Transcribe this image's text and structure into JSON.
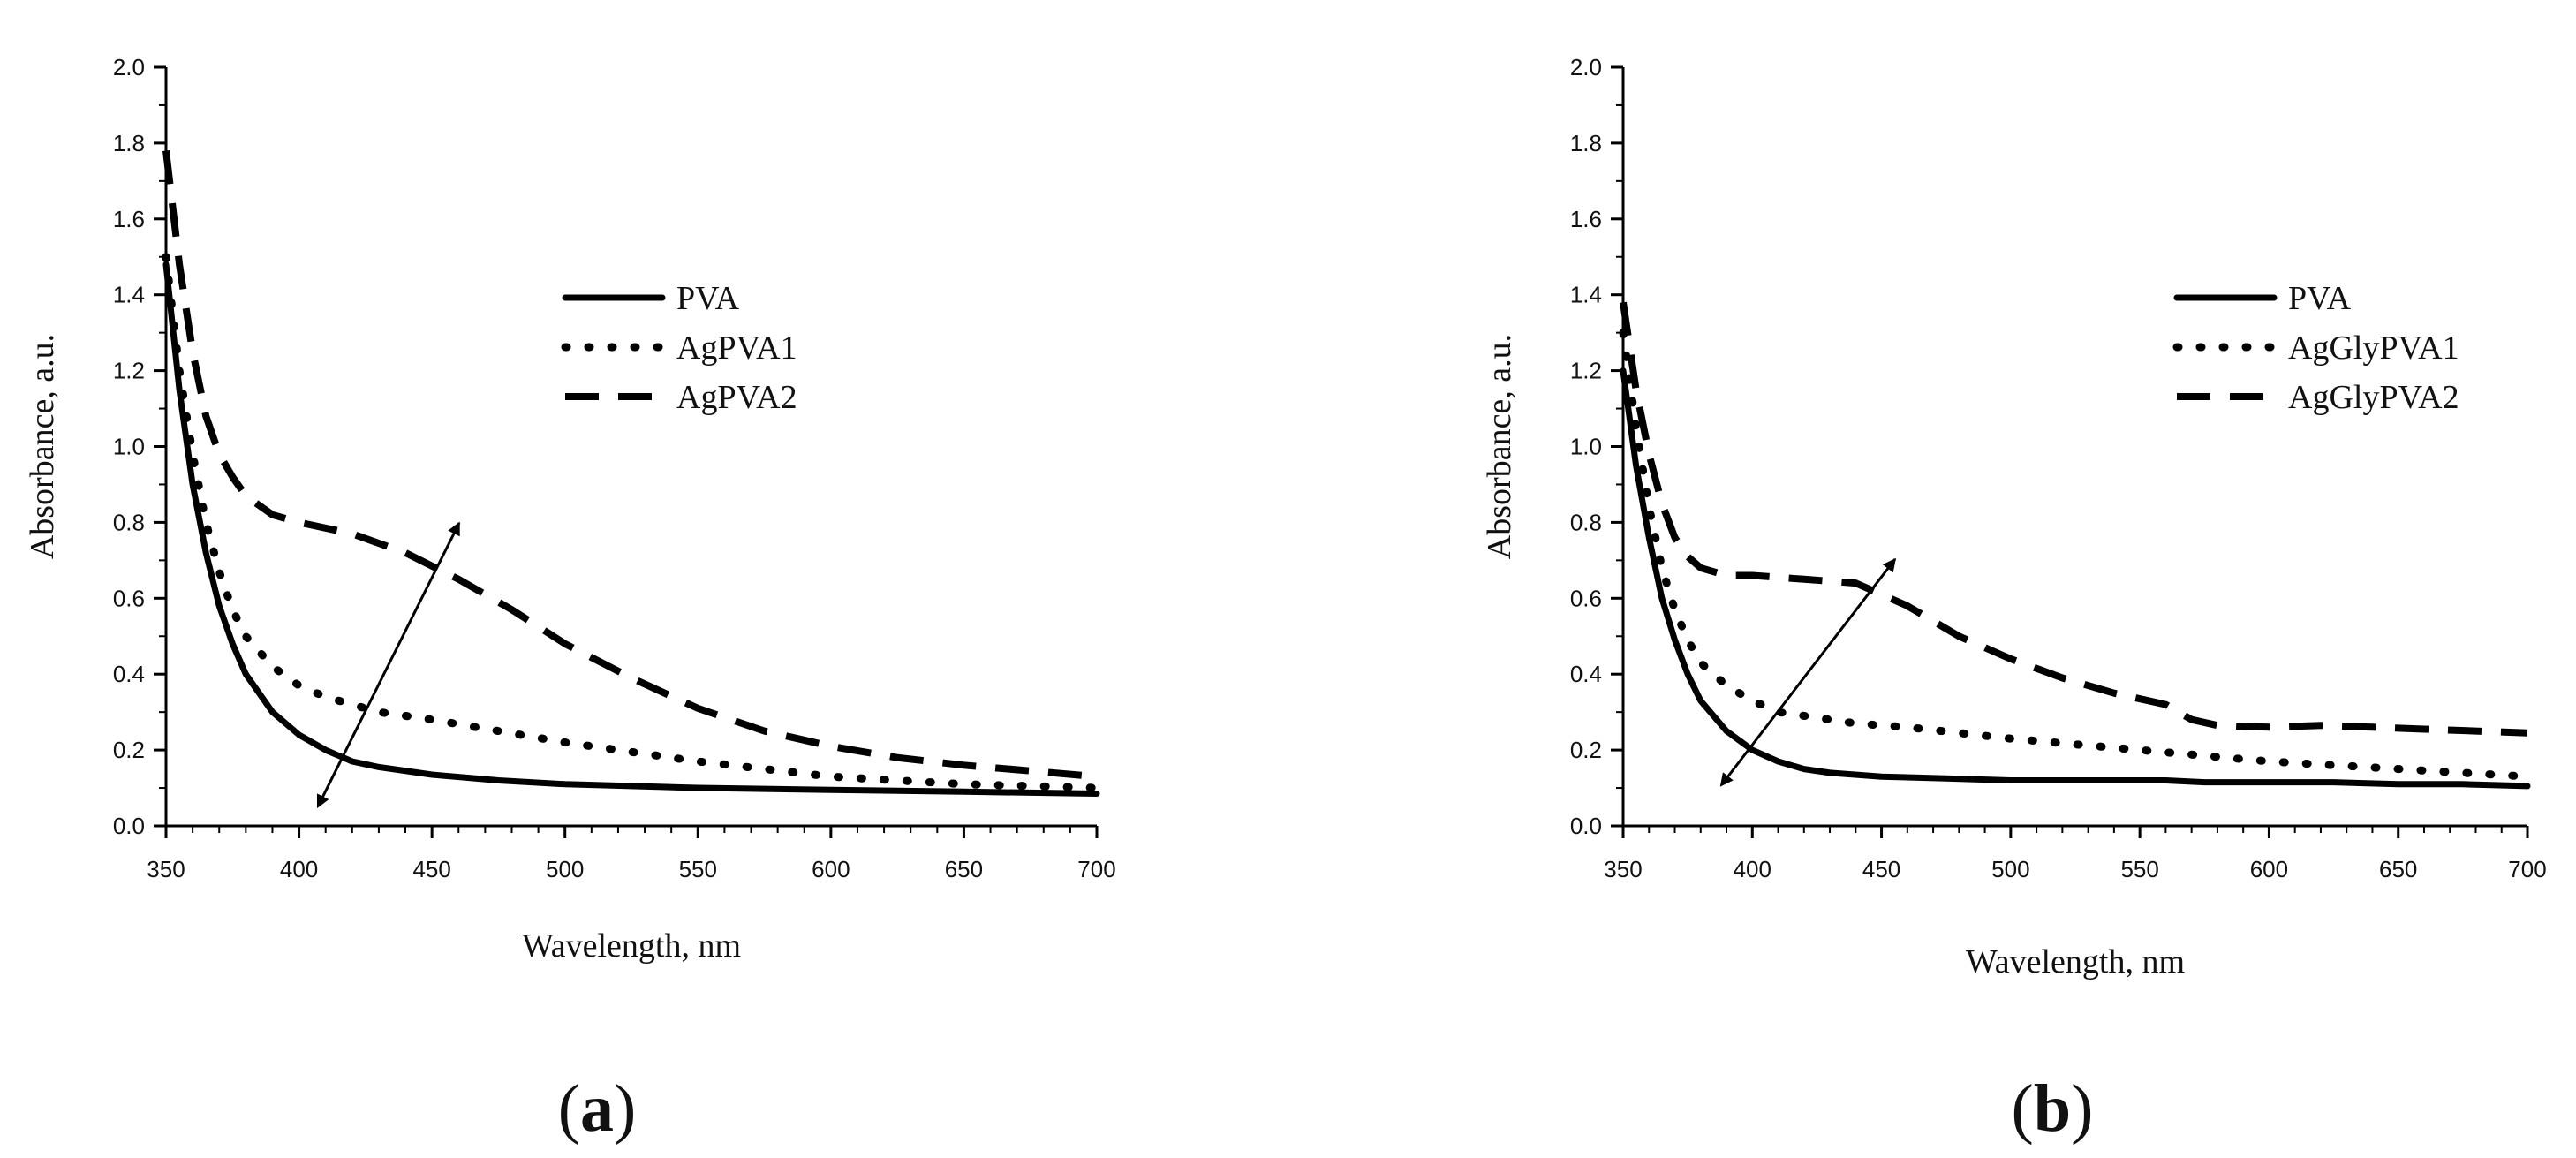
{
  "chart_data": [
    {
      "type": "line",
      "panel_label": "a",
      "xlabel": "Wavelength, nm",
      "ylabel": "Absorbance, a.u.",
      "xlim": [
        350,
        700
      ],
      "ylim": [
        0.0,
        2.0
      ],
      "xticks": [
        "350",
        "400",
        "450",
        "500",
        "550",
        "600",
        "650",
        "700"
      ],
      "yticks": [
        "0.0",
        "0.2",
        "0.4",
        "0.6",
        "0.8",
        "1.0",
        "1.2",
        "1.4",
        "1.6",
        "1.8",
        "2.0"
      ],
      "legend_position": "upper-right",
      "annotation": "double-headed arrow indicating increasing absorbance from PVA to AgPVA2",
      "series": [
        {
          "name": "PVA",
          "style": "solid",
          "x": [
            350,
            355,
            360,
            365,
            370,
            375,
            380,
            390,
            400,
            410,
            420,
            430,
            450,
            475,
            500,
            550,
            600,
            650,
            700
          ],
          "y": [
            1.48,
            1.15,
            0.9,
            0.72,
            0.58,
            0.48,
            0.4,
            0.3,
            0.24,
            0.2,
            0.17,
            0.155,
            0.135,
            0.12,
            0.11,
            0.1,
            0.095,
            0.09,
            0.085
          ]
        },
        {
          "name": "AgPVA1",
          "style": "dotted",
          "x": [
            350,
            355,
            360,
            365,
            370,
            375,
            380,
            390,
            400,
            410,
            420,
            430,
            450,
            475,
            500,
            550,
            600,
            650,
            700
          ],
          "y": [
            1.5,
            1.2,
            0.98,
            0.8,
            0.67,
            0.57,
            0.5,
            0.42,
            0.37,
            0.34,
            0.32,
            0.3,
            0.28,
            0.25,
            0.22,
            0.17,
            0.13,
            0.11,
            0.1
          ]
        },
        {
          "name": "AgPVA2",
          "style": "dashed",
          "x": [
            350,
            355,
            360,
            365,
            370,
            375,
            380,
            390,
            400,
            420,
            440,
            460,
            480,
            500,
            525,
            550,
            575,
            600,
            625,
            650,
            675,
            700
          ],
          "y": [
            1.78,
            1.48,
            1.25,
            1.08,
            0.98,
            0.92,
            0.87,
            0.82,
            0.8,
            0.77,
            0.72,
            0.65,
            0.57,
            0.48,
            0.39,
            0.31,
            0.25,
            0.21,
            0.18,
            0.16,
            0.145,
            0.13
          ]
        }
      ]
    },
    {
      "type": "line",
      "panel_label": "b",
      "xlabel": "Wavelength, nm",
      "ylabel": "Absorbance, a.u.",
      "xlim": [
        350,
        700
      ],
      "ylim": [
        0.0,
        2.0
      ],
      "xticks": [
        "350",
        "400",
        "450",
        "500",
        "550",
        "600",
        "650",
        "700"
      ],
      "yticks": [
        "0.0",
        "0.2",
        "0.4",
        "0.6",
        "0.8",
        "1.0",
        "1.2",
        "1.4",
        "1.6",
        "1.8",
        "2.0"
      ],
      "legend_position": "upper-right",
      "annotation": "double-headed arrow indicating increasing absorbance from PVA to AgGlyPVA2",
      "series": [
        {
          "name": "PVA",
          "style": "solid",
          "x": [
            350,
            355,
            360,
            365,
            370,
            375,
            380,
            390,
            400,
            410,
            420,
            430,
            450,
            475,
            500,
            550,
            560,
            575,
            600,
            625,
            650,
            675,
            700
          ],
          "y": [
            1.2,
            0.95,
            0.76,
            0.6,
            0.49,
            0.4,
            0.33,
            0.25,
            0.2,
            0.17,
            0.15,
            0.14,
            0.13,
            0.125,
            0.12,
            0.12,
            0.12,
            0.115,
            0.115,
            0.115,
            0.11,
            0.11,
            0.105
          ]
        },
        {
          "name": "AgGlyPVA1",
          "style": "dotted",
          "x": [
            350,
            355,
            360,
            365,
            370,
            375,
            380,
            390,
            400,
            410,
            420,
            440,
            460,
            500,
            550,
            600,
            650,
            700
          ],
          "y": [
            1.3,
            1.05,
            0.84,
            0.68,
            0.57,
            0.49,
            0.43,
            0.37,
            0.33,
            0.3,
            0.29,
            0.27,
            0.26,
            0.23,
            0.2,
            0.17,
            0.15,
            0.13
          ]
        },
        {
          "name": "AgGlyPVA2",
          "style": "dashed",
          "x": [
            350,
            355,
            360,
            365,
            370,
            375,
            380,
            390,
            400,
            420,
            440,
            460,
            480,
            500,
            520,
            540,
            560,
            570,
            580,
            600,
            620,
            640,
            660,
            680,
            700
          ],
          "y": [
            1.38,
            1.15,
            0.98,
            0.85,
            0.76,
            0.71,
            0.68,
            0.66,
            0.66,
            0.65,
            0.64,
            0.58,
            0.5,
            0.44,
            0.39,
            0.35,
            0.32,
            0.28,
            0.265,
            0.26,
            0.265,
            0.26,
            0.255,
            0.25,
            0.245
          ]
        }
      ]
    }
  ]
}
